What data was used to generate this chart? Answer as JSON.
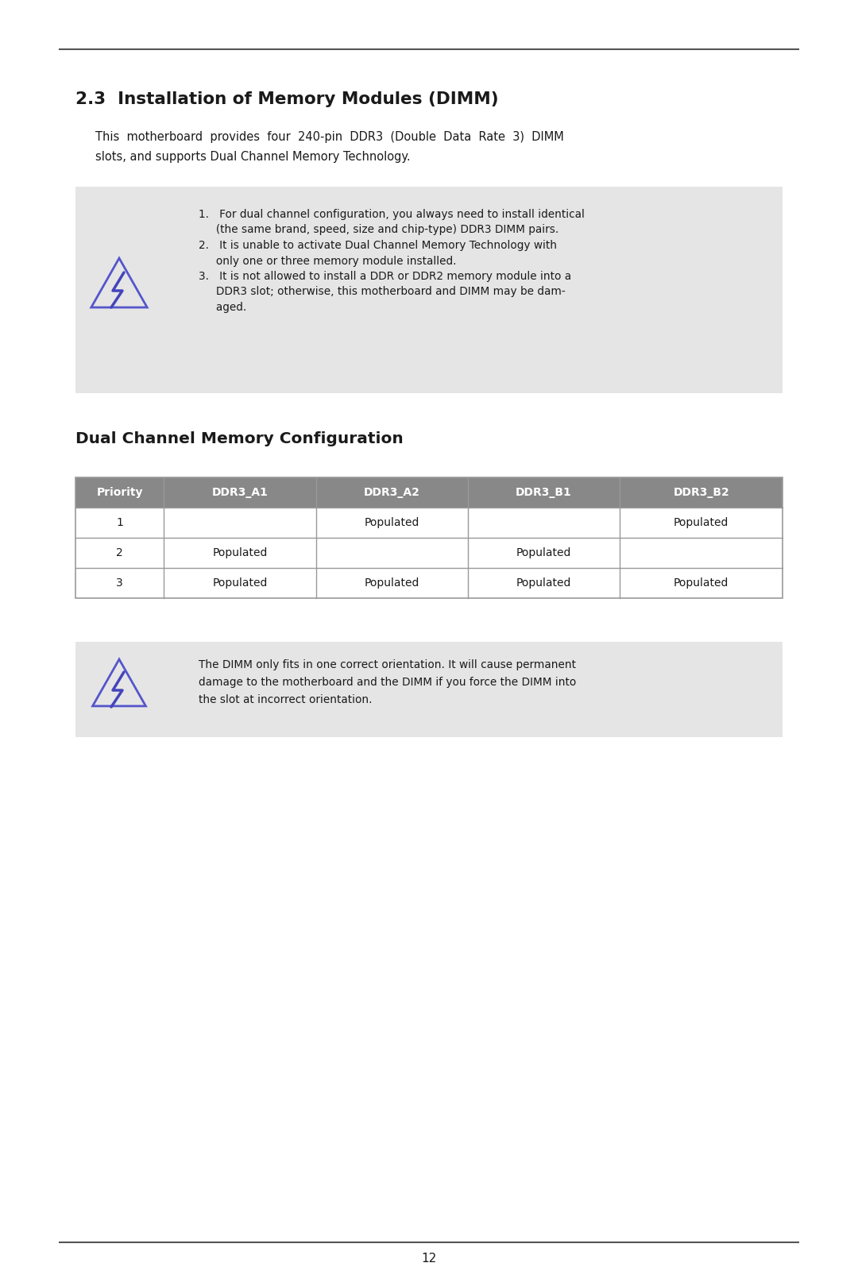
{
  "page_number": "12",
  "bg_color": "#ffffff",
  "note_box_color": "#e5e5e5",
  "table_header_color": "#888888",
  "table_header_text_color": "#ffffff",
  "text_color": "#1a1a1a",
  "line_color": "#555555",
  "triangle_outline_color": "#5555cc",
  "bolt_color": "#4444bb",
  "section_title": "2.3  Installation of Memory Modules (DIMM)",
  "intro_line1": "This  motherboard  provides  four  240-pin  DDR3  (Double  Data  Rate  3)  DIMM",
  "intro_line2": "slots, and supports Dual Channel Memory Technology.",
  "note1_lines": [
    "1.   For dual channel configuration, you always need to install identical",
    "     (the same brand, speed, size and chip-type) DDR3 DIMM pairs.",
    "2.   It is unable to activate Dual Channel Memory Technology with",
    "     only one or three memory module installed.",
    "3.   It is not allowed to install a DDR or DDR2 memory module into a",
    "     DDR3 slot; otherwise, this motherboard and DIMM may be dam-",
    "     aged."
  ],
  "dual_channel_title": "Dual Channel Memory Configuration",
  "table_header": [
    "Priority",
    "DDR3_A1",
    "DDR3_A2",
    "DDR3_B1",
    "DDR3_B2"
  ],
  "table_rows": [
    [
      "1",
      "",
      "Populated",
      "",
      "Populated"
    ],
    [
      "2",
      "Populated",
      "",
      "Populated",
      ""
    ],
    [
      "3",
      "Populated",
      "Populated",
      "Populated",
      "Populated"
    ]
  ],
  "note2_lines": [
    "The DIMM only fits in one correct orientation. It will cause permanent",
    "damage to the motherboard and the DIMM if you force the DIMM into",
    "the slot at incorrect orientation."
  ]
}
